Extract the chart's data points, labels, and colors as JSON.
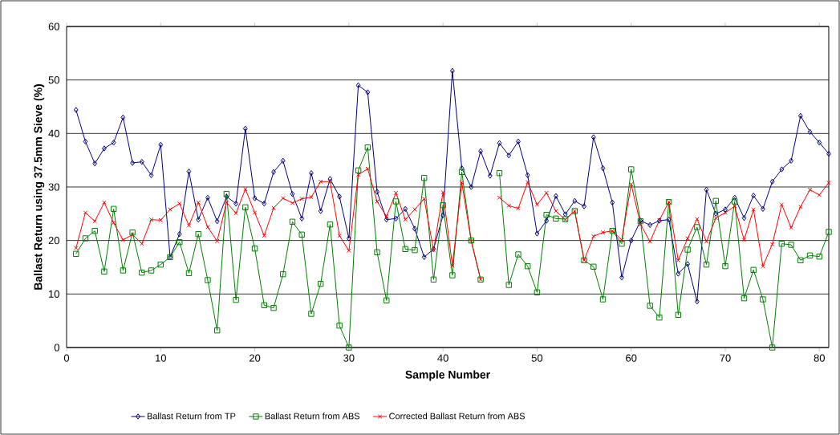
{
  "chart_data": {
    "type": "line",
    "xlabel": "Sample Number",
    "ylabel": "Ballast Return using 37.5mm Sieve (%)",
    "x": [
      1,
      2,
      3,
      4,
      5,
      6,
      7,
      8,
      9,
      10,
      11,
      12,
      13,
      14,
      15,
      16,
      17,
      18,
      19,
      20,
      21,
      22,
      23,
      24,
      25,
      26,
      27,
      28,
      29,
      30,
      31,
      32,
      33,
      34,
      35,
      36,
      37,
      38,
      39,
      40,
      41,
      42,
      43,
      44,
      45,
      46,
      47,
      48,
      49,
      50,
      51,
      52,
      53,
      54,
      55,
      56,
      57,
      58,
      59,
      60,
      61,
      62,
      63,
      64,
      65,
      66,
      67,
      68,
      69,
      70,
      71,
      72,
      73,
      74,
      75,
      76,
      77,
      78,
      79,
      80,
      81
    ],
    "xlim": [
      0,
      81
    ],
    "xticks": [
      0,
      10,
      20,
      30,
      40,
      50,
      60,
      70,
      80
    ],
    "ylim": [
      0,
      60
    ],
    "yticks": [
      0,
      10,
      20,
      30,
      40,
      50,
      60
    ],
    "grid": "y",
    "legend": "bottom",
    "line_style": "solid",
    "series": [
      {
        "name": "Ballast Return from TP",
        "color": "#000080",
        "marker": "diamond",
        "values": [
          44.4,
          38.5,
          34.4,
          37.2,
          38.3,
          43.0,
          34.5,
          34.7,
          32.2,
          37.9,
          16.9,
          21.2,
          32.9,
          23.9,
          28.0,
          23.6,
          28.2,
          26.9,
          40.9,
          27.9,
          26.9,
          32.8,
          34.9,
          28.7,
          24.1,
          32.6,
          25.5,
          31.5,
          28.2,
          20.4,
          49.0,
          47.7,
          29.1,
          23.9,
          24.1,
          25.9,
          22.2,
          16.9,
          18.4,
          24.7,
          51.7,
          33.5,
          30.0,
          36.7,
          32.1,
          38.2,
          35.9,
          38.5,
          32.2,
          21.3,
          23.7,
          28.3,
          24.9,
          27.4,
          26.4,
          39.3,
          33.5,
          27.1,
          13.1,
          20.0,
          23.7,
          22.9,
          23.7,
          23.9,
          13.8,
          15.6,
          8.6,
          29.5,
          25.0,
          25.8,
          28.0,
          24.2,
          28.4,
          25.9,
          31.0,
          33.3,
          34.9,
          43.3,
          40.3,
          38.3,
          36.2
        ]
      },
      {
        "name": "Ballast Return from ABS",
        "color": "#008000",
        "marker": "square",
        "values": [
          17.5,
          20.4,
          21.8,
          14.2,
          25.9,
          14.4,
          21.5,
          14.0,
          14.4,
          15.5,
          16.9,
          19.7,
          13.9,
          21.2,
          12.6,
          3.2,
          28.7,
          8.9,
          26.2,
          18.5,
          7.9,
          7.4,
          13.7,
          23.5,
          21.1,
          6.3,
          11.9,
          23.0,
          4.1,
          0.0,
          33.1,
          37.4,
          17.8,
          8.8,
          27.3,
          18.4,
          18.2,
          31.7,
          12.7,
          26.6,
          13.5,
          32.8,
          20.0,
          12.7,
          null,
          32.6,
          11.7,
          17.4,
          15.2,
          10.3,
          24.8,
          24.1,
          24.0,
          25.5,
          16.3,
          15.1,
          9.0,
          21.8,
          19.4,
          33.3,
          23.6,
          7.8,
          5.6,
          27.2,
          6.1,
          18.3,
          22.5,
          15.5,
          27.4,
          15.2,
          27.3,
          9.2,
          14.5,
          9.0,
          0.0,
          19.4,
          19.2,
          16.3,
          17.2,
          17.0,
          21.6
        ]
      },
      {
        "name": "Corrected Ballast Return from ABS",
        "color": "#ff0000",
        "marker": "cross",
        "values": [
          18.6,
          25.2,
          23.6,
          27.1,
          23.3,
          20.1,
          21.1,
          19.4,
          23.9,
          23.8,
          25.8,
          26.9,
          22.8,
          27.1,
          22.5,
          19.9,
          27.1,
          25.1,
          29.6,
          25.2,
          20.9,
          26.1,
          27.9,
          27.0,
          27.8,
          28.1,
          31.0,
          31.0,
          20.9,
          18.1,
          32.3,
          33.4,
          27.3,
          24.5,
          28.9,
          23.9,
          25.8,
          27.8,
          18.2,
          29.0,
          15.3,
          30.8,
          19.9,
          12.7,
          null,
          28.0,
          26.5,
          26.0,
          30.9,
          26.7,
          28.9,
          25.5,
          23.9,
          25.5,
          16.3,
          20.8,
          21.5,
          21.8,
          20.1,
          30.5,
          23.0,
          19.8,
          23.8,
          27.2,
          16.3,
          20.4,
          24.0,
          19.8,
          24.2,
          25.2,
          26.4,
          20.1,
          25.8,
          15.2,
          19.3,
          26.7,
          22.4,
          26.3,
          29.5,
          28.5,
          30.8
        ]
      }
    ]
  }
}
